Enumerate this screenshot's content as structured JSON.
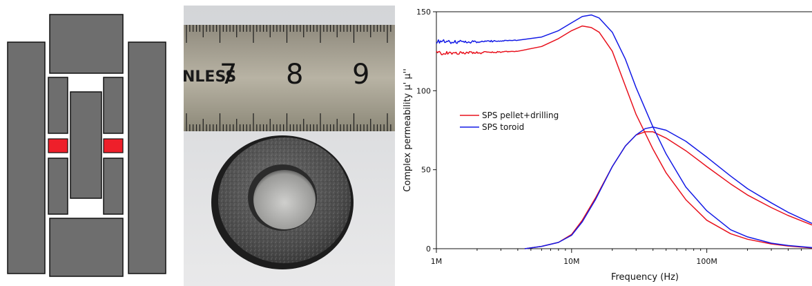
{
  "colors": {
    "die_fill": "#6e6e6e",
    "die_stroke": "#111111",
    "sample": "#ee1f2a",
    "series_red": "#e8101c",
    "series_blue": "#1219e6"
  },
  "photo": {
    "ruler_text": "NLESS",
    "ruler_numbers": [
      "7",
      "8",
      "9"
    ]
  },
  "chart_data": {
    "type": "line",
    "xlabel": "Frequency (Hz)",
    "ylabel": "Complex permeability µ' µ''",
    "x_scale": "log",
    "xlim": [
      1000000,
      600000000
    ],
    "ylim": [
      0,
      150
    ],
    "x_ticks": [
      {
        "value": 1000000,
        "label": "1M"
      },
      {
        "value": 10000000,
        "label": "10M"
      },
      {
        "value": 100000000,
        "label": "100M"
      }
    ],
    "y_ticks": [
      {
        "value": 0,
        "label": "0"
      },
      {
        "value": 50,
        "label": "50"
      },
      {
        "value": 100,
        "label": "100"
      },
      {
        "value": 150,
        "label": "150"
      }
    ],
    "legend_position": "center-left",
    "series": [
      {
        "name": "SPS pellet+drilling",
        "color": "#e8101c",
        "parts": [
          {
            "part": "real",
            "x": [
              1000000,
              2000000,
              4000000,
              6000000,
              8000000,
              10000000,
              12000000,
              14000000,
              16000000,
              20000000,
              25000000,
              30000000,
              40000000,
              50000000,
              70000000,
              100000000,
              150000000,
              200000000,
              300000000,
              400000000,
              600000000
            ],
            "y": [
              124,
              124,
              125,
              128,
              133,
              138,
              141,
              140,
              137,
              125,
              103,
              85,
              63,
              48,
              31,
              18,
              9.5,
              6,
              3,
              1.7,
              0.5
            ]
          },
          {
            "part": "imaginary",
            "x": [
              4500000,
              6000000,
              8000000,
              10000000,
              12000000,
              15000000,
              20000000,
              25000000,
              30000000,
              35000000,
              40000000,
              50000000,
              70000000,
              100000000,
              150000000,
              200000000,
              300000000,
              400000000,
              600000000
            ],
            "y": [
              0,
              1.5,
              4,
              9,
              18,
              32,
              52,
              65,
              72,
              74,
              74,
              70,
              62,
              52,
              41,
              34,
              26,
              21,
              15
            ]
          }
        ]
      },
      {
        "name": "SPS toroid",
        "color": "#1219e6",
        "parts": [
          {
            "part": "real",
            "x": [
              1000000,
              2000000,
              4000000,
              6000000,
              8000000,
              10000000,
              12000000,
              14000000,
              16000000,
              20000000,
              25000000,
              30000000,
              40000000,
              50000000,
              70000000,
              100000000,
              150000000,
              200000000,
              300000000,
              400000000,
              600000000
            ],
            "y": [
              131,
              131,
              132,
              134,
              138,
              143,
              147,
              148,
              146,
              137,
              120,
              102,
              77,
              60,
              39,
              24,
              12,
              7.5,
              3.5,
              2,
              0.7
            ]
          },
          {
            "part": "imaginary",
            "x": [
              4500000,
              6000000,
              8000000,
              10000000,
              12000000,
              15000000,
              20000000,
              25000000,
              30000000,
              35000000,
              40000000,
              50000000,
              70000000,
              100000000,
              150000000,
              200000000,
              300000000,
              400000000,
              600000000
            ],
            "y": [
              0,
              1.5,
              4,
              8.5,
              17,
              31,
              52,
              65,
              72,
              76,
              77,
              75,
              68,
              58,
              46,
              38,
              29,
              23,
              16
            ]
          }
        ]
      }
    ]
  }
}
